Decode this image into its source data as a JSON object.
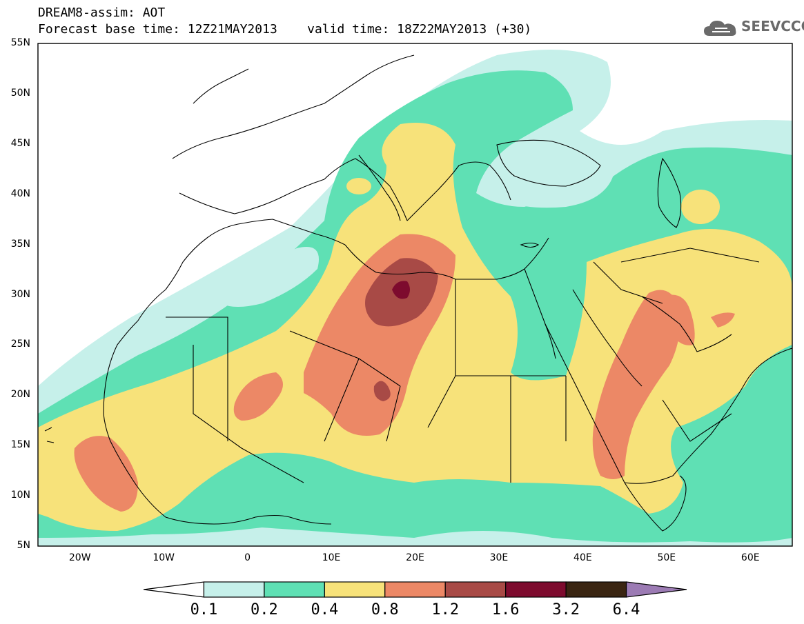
{
  "header": {
    "line1": "DREAM8-assim: AOT",
    "line2": "Forecast base time: 12Z21MAY2013    valid time: 18Z22MAY2013 (+30)"
  },
  "logo": {
    "text": "SEEVCCC",
    "icon": "cloud-icon"
  },
  "map": {
    "lat_labels": [
      "55N",
      "50N",
      "45N",
      "40N",
      "35N",
      "30N",
      "25N",
      "20N",
      "15N",
      "10N",
      "5N"
    ],
    "lon_labels": [
      "20W",
      "10W",
      "0",
      "10E",
      "20E",
      "30E",
      "40E",
      "50E",
      "60E"
    ],
    "lat_range": [
      5,
      55
    ],
    "lon_range": [
      -25,
      65
    ]
  },
  "colorbar": {
    "labels": [
      "0.1",
      "0.2",
      "0.4",
      "0.8",
      "1.2",
      "1.6",
      "3.2",
      "6.4"
    ],
    "colors": [
      "#ffffff",
      "#c6f0ea",
      "#5fe0b4",
      "#f7e27a",
      "#ec8866",
      "#a84a46",
      "#7d0b2e",
      "#3a2512",
      "#9c7bb4"
    ]
  }
}
